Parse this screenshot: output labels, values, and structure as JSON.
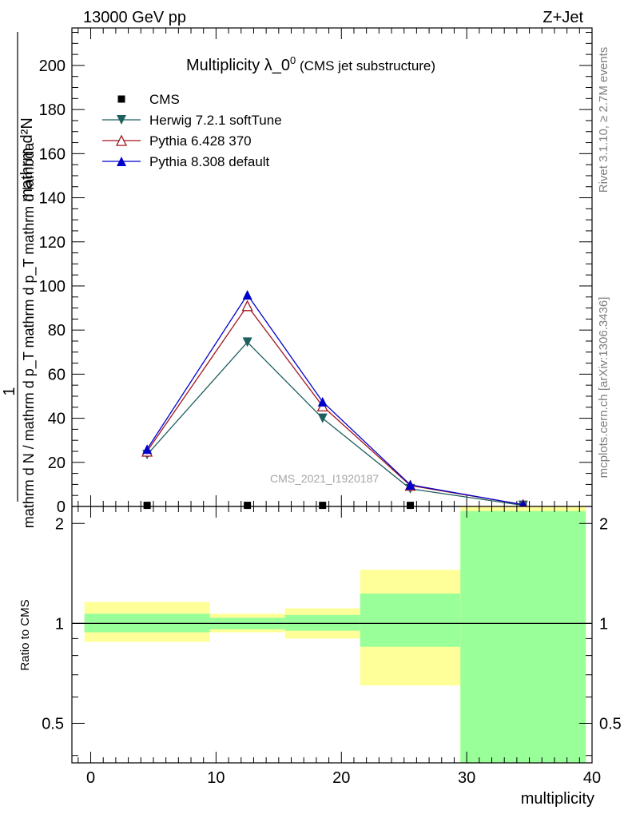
{
  "header": {
    "left": "13000 GeV pp",
    "right": "Z+Jet"
  },
  "side": {
    "rivet": "Rivet 3.1.10, ≥ 2.7M events",
    "mcplots": "mcplots.cern.ch [arXiv:1306.3436]"
  },
  "chart_data": [
    {
      "type": "line",
      "title_main": "Multiplicity λ_0",
      "title_sup": "0",
      "title_sub": " (CMS jet substructure)",
      "ylabel_top": "1",
      "ylabel_num": "mathrm d²N",
      "ylabel_den": "mathrm d N / mathrm d p_T mathrm d p_T mathrm d lambda",
      "watermark": "CMS_2021_I1920187",
      "xlim": [
        -1.5,
        40
      ],
      "ylim": [
        0,
        217
      ],
      "yticks": [
        0,
        20,
        40,
        60,
        80,
        100,
        120,
        140,
        160,
        180,
        200
      ],
      "legend_position": "top-left",
      "bins": [
        [
          -0.5,
          9.5
        ],
        [
          9.5,
          15.5
        ],
        [
          15.5,
          21.5
        ],
        [
          21.5,
          29.5
        ],
        [
          29.5,
          39.5
        ]
      ],
      "series": [
        {
          "name": "CMS",
          "marker": "square",
          "color": "#000000",
          "x": [
            4.5,
            12.5,
            18.5,
            25.5,
            34.5
          ],
          "y": [
            0.5,
            0.5,
            0.5,
            0.5,
            0.2
          ]
        },
        {
          "name": "Herwig 7.2.1 softTune",
          "marker": "triangle-down",
          "color": "#1f5f5f",
          "x": [
            4.5,
            12.5,
            18.5,
            25.5,
            34.5
          ],
          "y": [
            23.5,
            74.5,
            40.0,
            8.0,
            0.5
          ]
        },
        {
          "name": "Pythia 6.428 370",
          "marker": "triangle-open",
          "color": "#a0151b",
          "x": [
            4.5,
            12.5,
            18.5,
            25.5,
            34.5
          ],
          "y": [
            25.0,
            91.0,
            45.5,
            9.5,
            0.8
          ]
        },
        {
          "name": "Pythia 8.308 default",
          "marker": "triangle-up",
          "color": "#0000cc",
          "x": [
            4.5,
            12.5,
            18.5,
            25.5,
            34.5
          ],
          "y": [
            26.0,
            96.0,
            47.5,
            9.8,
            0.8
          ]
        }
      ]
    },
    {
      "type": "area",
      "ylabel": "Ratio to CMS",
      "xlabel": "multiplicity",
      "xlim": [
        -1.5,
        40
      ],
      "ylim": [
        0.38,
        2.25
      ],
      "yscale": "log",
      "xticks": [
        0,
        10,
        20,
        30,
        40
      ],
      "yticks": [
        0.5,
        1,
        2
      ],
      "reference_line": 1,
      "stat_band_color": "#99ff99",
      "total_band_color": "#ffff99",
      "bands": [
        {
          "x0": -0.5,
          "x1": 9.5,
          "stat": [
            0.94,
            1.07
          ],
          "total": [
            0.88,
            1.16
          ]
        },
        {
          "x0": 9.5,
          "x1": 15.5,
          "stat": [
            0.96,
            1.04
          ],
          "total": [
            0.94,
            1.07
          ]
        },
        {
          "x0": 15.5,
          "x1": 21.5,
          "stat": [
            0.95,
            1.06
          ],
          "total": [
            0.9,
            1.11
          ]
        },
        {
          "x0": 21.5,
          "x1": 29.5,
          "stat": [
            0.85,
            1.23
          ],
          "total": [
            0.65,
            1.45
          ]
        },
        {
          "x0": 29.5,
          "x1": 39.5,
          "stat": [
            0.38,
            2.18
          ],
          "total": [
            0.38,
            2.25
          ]
        }
      ]
    }
  ]
}
